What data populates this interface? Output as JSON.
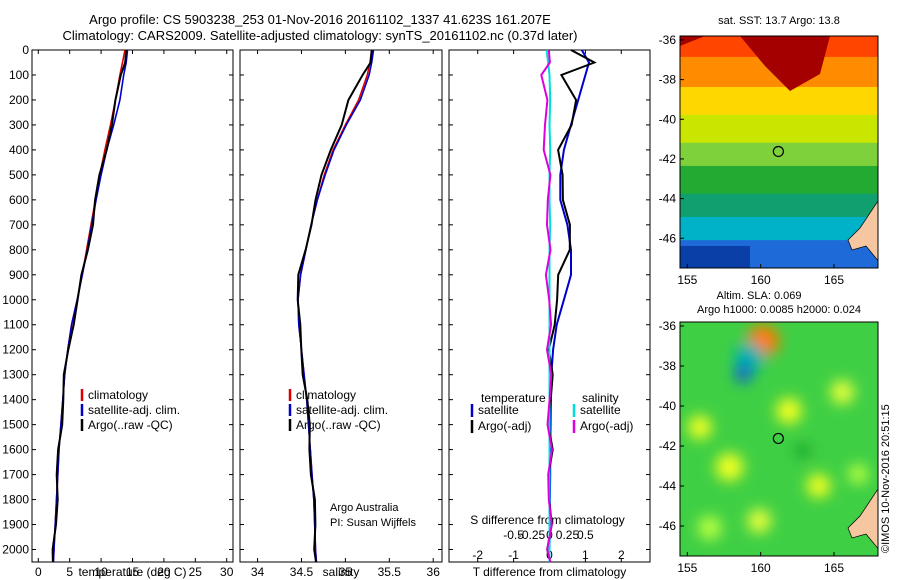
{
  "header": {
    "line1": "Argo profile: CS 5903238_253 01-Nov-2016 20161102_1337 41.623S 161.207E",
    "line2": "Climatology: CARS2009. Satellite-adjusted climatology: synTS_20161102.nc (0.37d later)"
  },
  "colors": {
    "climatology": "#dd0000",
    "satellite": "#0000cc",
    "argo": "#000000",
    "salinity_sat": "#00dddd",
    "salinity_argo": "#dd00dd"
  },
  "chart_data": [
    {
      "type": "line",
      "panel": "temperature",
      "xlabel": "temperature (deg C)",
      "xlim": [
        -1,
        31
      ],
      "xticks": [
        "0",
        "5",
        "10",
        "15",
        "20",
        "25",
        "30"
      ],
      "ylim": [
        0,
        2050
      ],
      "yticks": [
        "0",
        "100",
        "200",
        "300",
        "400",
        "500",
        "600",
        "700",
        "800",
        "900",
        "1000",
        "1100",
        "1200",
        "1300",
        "1400",
        "1500",
        "1600",
        "1700",
        "1800",
        "1900",
        "2000"
      ],
      "depth": [
        0,
        50,
        100,
        200,
        300,
        400,
        500,
        600,
        700,
        800,
        900,
        1000,
        1100,
        1200,
        1300,
        1400,
        1500,
        1600,
        1700,
        1800,
        1900,
        2000,
        2050
      ],
      "series": [
        {
          "name": "climatology",
          "values": [
            13.8,
            13.4,
            13.0,
            12.3,
            11.5,
            10.6,
            9.8,
            9.1,
            8.4,
            7.7,
            7.0,
            6.2,
            5.3,
            4.7,
            4.2,
            3.9,
            3.6,
            3.3,
            3.1,
            2.9,
            2.7,
            2.5,
            2.4
          ]
        },
        {
          "name": "satellite-adj. clim.",
          "values": [
            14.2,
            14.0,
            13.6,
            13.0,
            12.0,
            10.9,
            10.0,
            9.2,
            8.5,
            7.8,
            7.0,
            6.2,
            5.3,
            4.7,
            4.2,
            3.9,
            3.6,
            3.3,
            3.1,
            2.9,
            2.7,
            2.5,
            2.4
          ]
        },
        {
          "name": "Argo(..raw -QC)",
          "values": [
            14.0,
            13.6,
            13.2,
            12.5,
            11.6,
            10.7,
            9.9,
            9.2,
            8.5,
            7.8,
            7.1,
            6.3,
            5.4,
            4.8,
            4.3,
            3.9,
            3.6,
            3.3,
            3.1,
            2.9,
            2.7,
            2.5,
            2.4
          ]
        }
      ],
      "legend": [
        "climatology",
        "satellite-adj. clim.",
        "Argo(..raw -QC)"
      ]
    },
    {
      "type": "line",
      "panel": "salinity",
      "xlabel": "salinity",
      "xlim": [
        33.8,
        36.1
      ],
      "xticks": [
        "34",
        "34.5",
        "35",
        "35.5",
        "36"
      ],
      "ylim": [
        0,
        2050
      ],
      "depth": [
        0,
        50,
        100,
        200,
        300,
        400,
        500,
        600,
        700,
        800,
        900,
        1000,
        1100,
        1200,
        1300,
        1400,
        1500,
        1600,
        1700,
        1800,
        1900,
        2000,
        2050
      ],
      "series": [
        {
          "name": "climatology",
          "values": [
            35.3,
            35.28,
            35.25,
            35.15,
            35.0,
            34.86,
            34.76,
            34.68,
            34.61,
            34.55,
            34.49,
            34.46,
            34.47,
            34.5,
            34.53,
            34.56,
            34.58,
            34.6,
            34.62,
            34.64,
            34.65,
            34.66,
            34.67
          ]
        },
        {
          "name": "satellite-adj. clim.",
          "values": [
            35.32,
            35.3,
            35.27,
            35.17,
            35.01,
            34.87,
            34.77,
            34.68,
            34.61,
            34.55,
            34.49,
            34.46,
            34.47,
            34.5,
            34.53,
            34.56,
            34.58,
            34.6,
            34.62,
            34.64,
            34.65,
            34.66,
            34.67
          ]
        },
        {
          "name": "Argo(..raw -QC)",
          "values": [
            35.3,
            35.27,
            35.2,
            35.05,
            34.95,
            34.82,
            34.74,
            34.67,
            34.6,
            34.54,
            34.48,
            34.46,
            34.47,
            34.5,
            34.53,
            34.56,
            34.58,
            34.6,
            34.62,
            34.64,
            34.65,
            34.66,
            34.67
          ]
        }
      ],
      "legend": [
        "climatology",
        "satellite-adj. clim.",
        "Argo(..raw -QC)"
      ],
      "note_lines": [
        "Argo Australia",
        "PI: Susan Wijffels"
      ]
    },
    {
      "type": "line",
      "panel": "differences",
      "xlabel_top": "S difference from climatology",
      "xlabel": "T difference from climatology",
      "t_xlim": [
        -2.8,
        2.8
      ],
      "t_xticks": [
        "-2",
        "-1",
        "0",
        "1",
        "2"
      ],
      "s_xticks": [
        "-0.5",
        "-0.25",
        "0",
        "0.25",
        "0.5"
      ],
      "ylim": [
        0,
        2050
      ],
      "depth": [
        0,
        50,
        100,
        200,
        300,
        400,
        500,
        600,
        700,
        800,
        900,
        1000,
        1100,
        1200,
        1300,
        1400,
        1500,
        1600,
        1700,
        1800,
        1900,
        2000,
        2050
      ],
      "series": [
        {
          "name": "temperature satellite",
          "values": [
            0.9,
            1.1,
            1.0,
            0.8,
            0.6,
            0.4,
            0.3,
            0.3,
            0.5,
            0.6,
            0.6,
            0.4,
            0.2,
            0.1,
            0.05,
            0.04,
            0.03,
            0.02,
            0.02,
            0.01,
            0.01,
            0.0,
            0.0
          ]
        },
        {
          "name": "temperature Argo(-adj)",
          "values": [
            0.6,
            1.2,
            0.4,
            0.7,
            0.6,
            0.3,
            0.3,
            0.4,
            0.6,
            0.5,
            0.3,
            0.2,
            0.1,
            0.05,
            0.04,
            0.03,
            0.02,
            0.02,
            0.01,
            0.01,
            0.0,
            0.0,
            0.0
          ]
        },
        {
          "name": "salinity satellite",
          "values": [
            -0.04,
            -0.02,
            0.0,
            0.01,
            0.0,
            0.01,
            0.0,
            0.0,
            0.01,
            0.0,
            0.0,
            0.0,
            0.0,
            0.0,
            0.0,
            0.0,
            0.0,
            0.0,
            0.0,
            0.0,
            0.0,
            0.0,
            0.0
          ]
        },
        {
          "name": "salinity Argo(-adj)",
          "values": [
            -0.01,
            -0.02,
            -0.08,
            -0.05,
            -0.07,
            -0.05,
            -0.02,
            -0.01,
            -0.02,
            -0.02,
            -0.02,
            -0.01,
            0.0,
            0.0,
            0.0,
            0.0,
            0.0,
            0.0,
            0.0,
            0.0,
            0.0,
            0.0,
            0.0
          ]
        }
      ],
      "legend": {
        "temperature_title": "temperature",
        "salinity_title": "salinity",
        "t_sat": "satellite",
        "t_argo": "Argo(-adj)",
        "s_sat": "satellite",
        "s_argo": "Argo(-adj)"
      }
    },
    {
      "type": "heatmap",
      "panel": "sst-map",
      "title": "sat. SST: 13.7  Argo: 13.8",
      "xticks": [
        "155",
        "160",
        "165"
      ],
      "yticks": [
        "-36",
        "-38",
        "-40",
        "-42",
        "-44",
        "-46"
      ],
      "xlim": [
        154.5,
        168
      ],
      "ylim": [
        -47.5,
        -35.8
      ],
      "argo_position": {
        "lon": 161.207,
        "lat": -41.623
      }
    },
    {
      "type": "heatmap",
      "panel": "sla-map",
      "title_line1": "Altim. SLA: 0.069",
      "title_line2": "Argo h1000: 0.0085 h2000: 0.024",
      "xticks": [
        "155",
        "160",
        "165"
      ],
      "yticks": [
        "-36",
        "-38",
        "-40",
        "-42",
        "-44",
        "-46"
      ],
      "xlim": [
        154.5,
        168
      ],
      "ylim": [
        -47.5,
        -35.8
      ],
      "argo_position": {
        "lon": 161.207,
        "lat": -41.623
      }
    }
  ],
  "stamp": "©IMOS 10-Nov-2016 20:51:15"
}
